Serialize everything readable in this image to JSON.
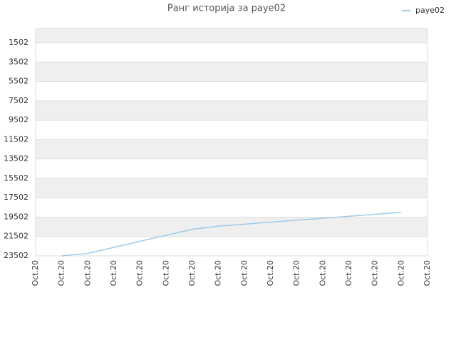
{
  "chart_data": {
    "type": "line",
    "title": "Ранг историја за paye02",
    "categories": [
      "Oct.20",
      "Oct.20",
      "Oct.20",
      "Oct.20",
      "Oct.20",
      "Oct.20",
      "Oct.20",
      "Oct.20",
      "Oct.20",
      "Oct.20",
      "Oct.20",
      "Oct.20",
      "Oct.20",
      "Oct.20",
      "Oct.20",
      "Oct.20"
    ],
    "series": [
      {
        "name": "paye02",
        "color": "#9ecae9",
        "values": [
          null,
          23502,
          23250,
          22620,
          21990,
          21380,
          20760,
          20430,
          20230,
          20020,
          19820,
          19620,
          19410,
          19210,
          19010,
          null
        ]
      }
    ],
    "ylim": [
      23502,
      35
    ],
    "yticks": [
      1502,
      3502,
      5502,
      7502,
      9502,
      11502,
      13502,
      15502,
      17502,
      19502,
      21502,
      23502
    ],
    "grid": true,
    "legend": "top-right"
  }
}
